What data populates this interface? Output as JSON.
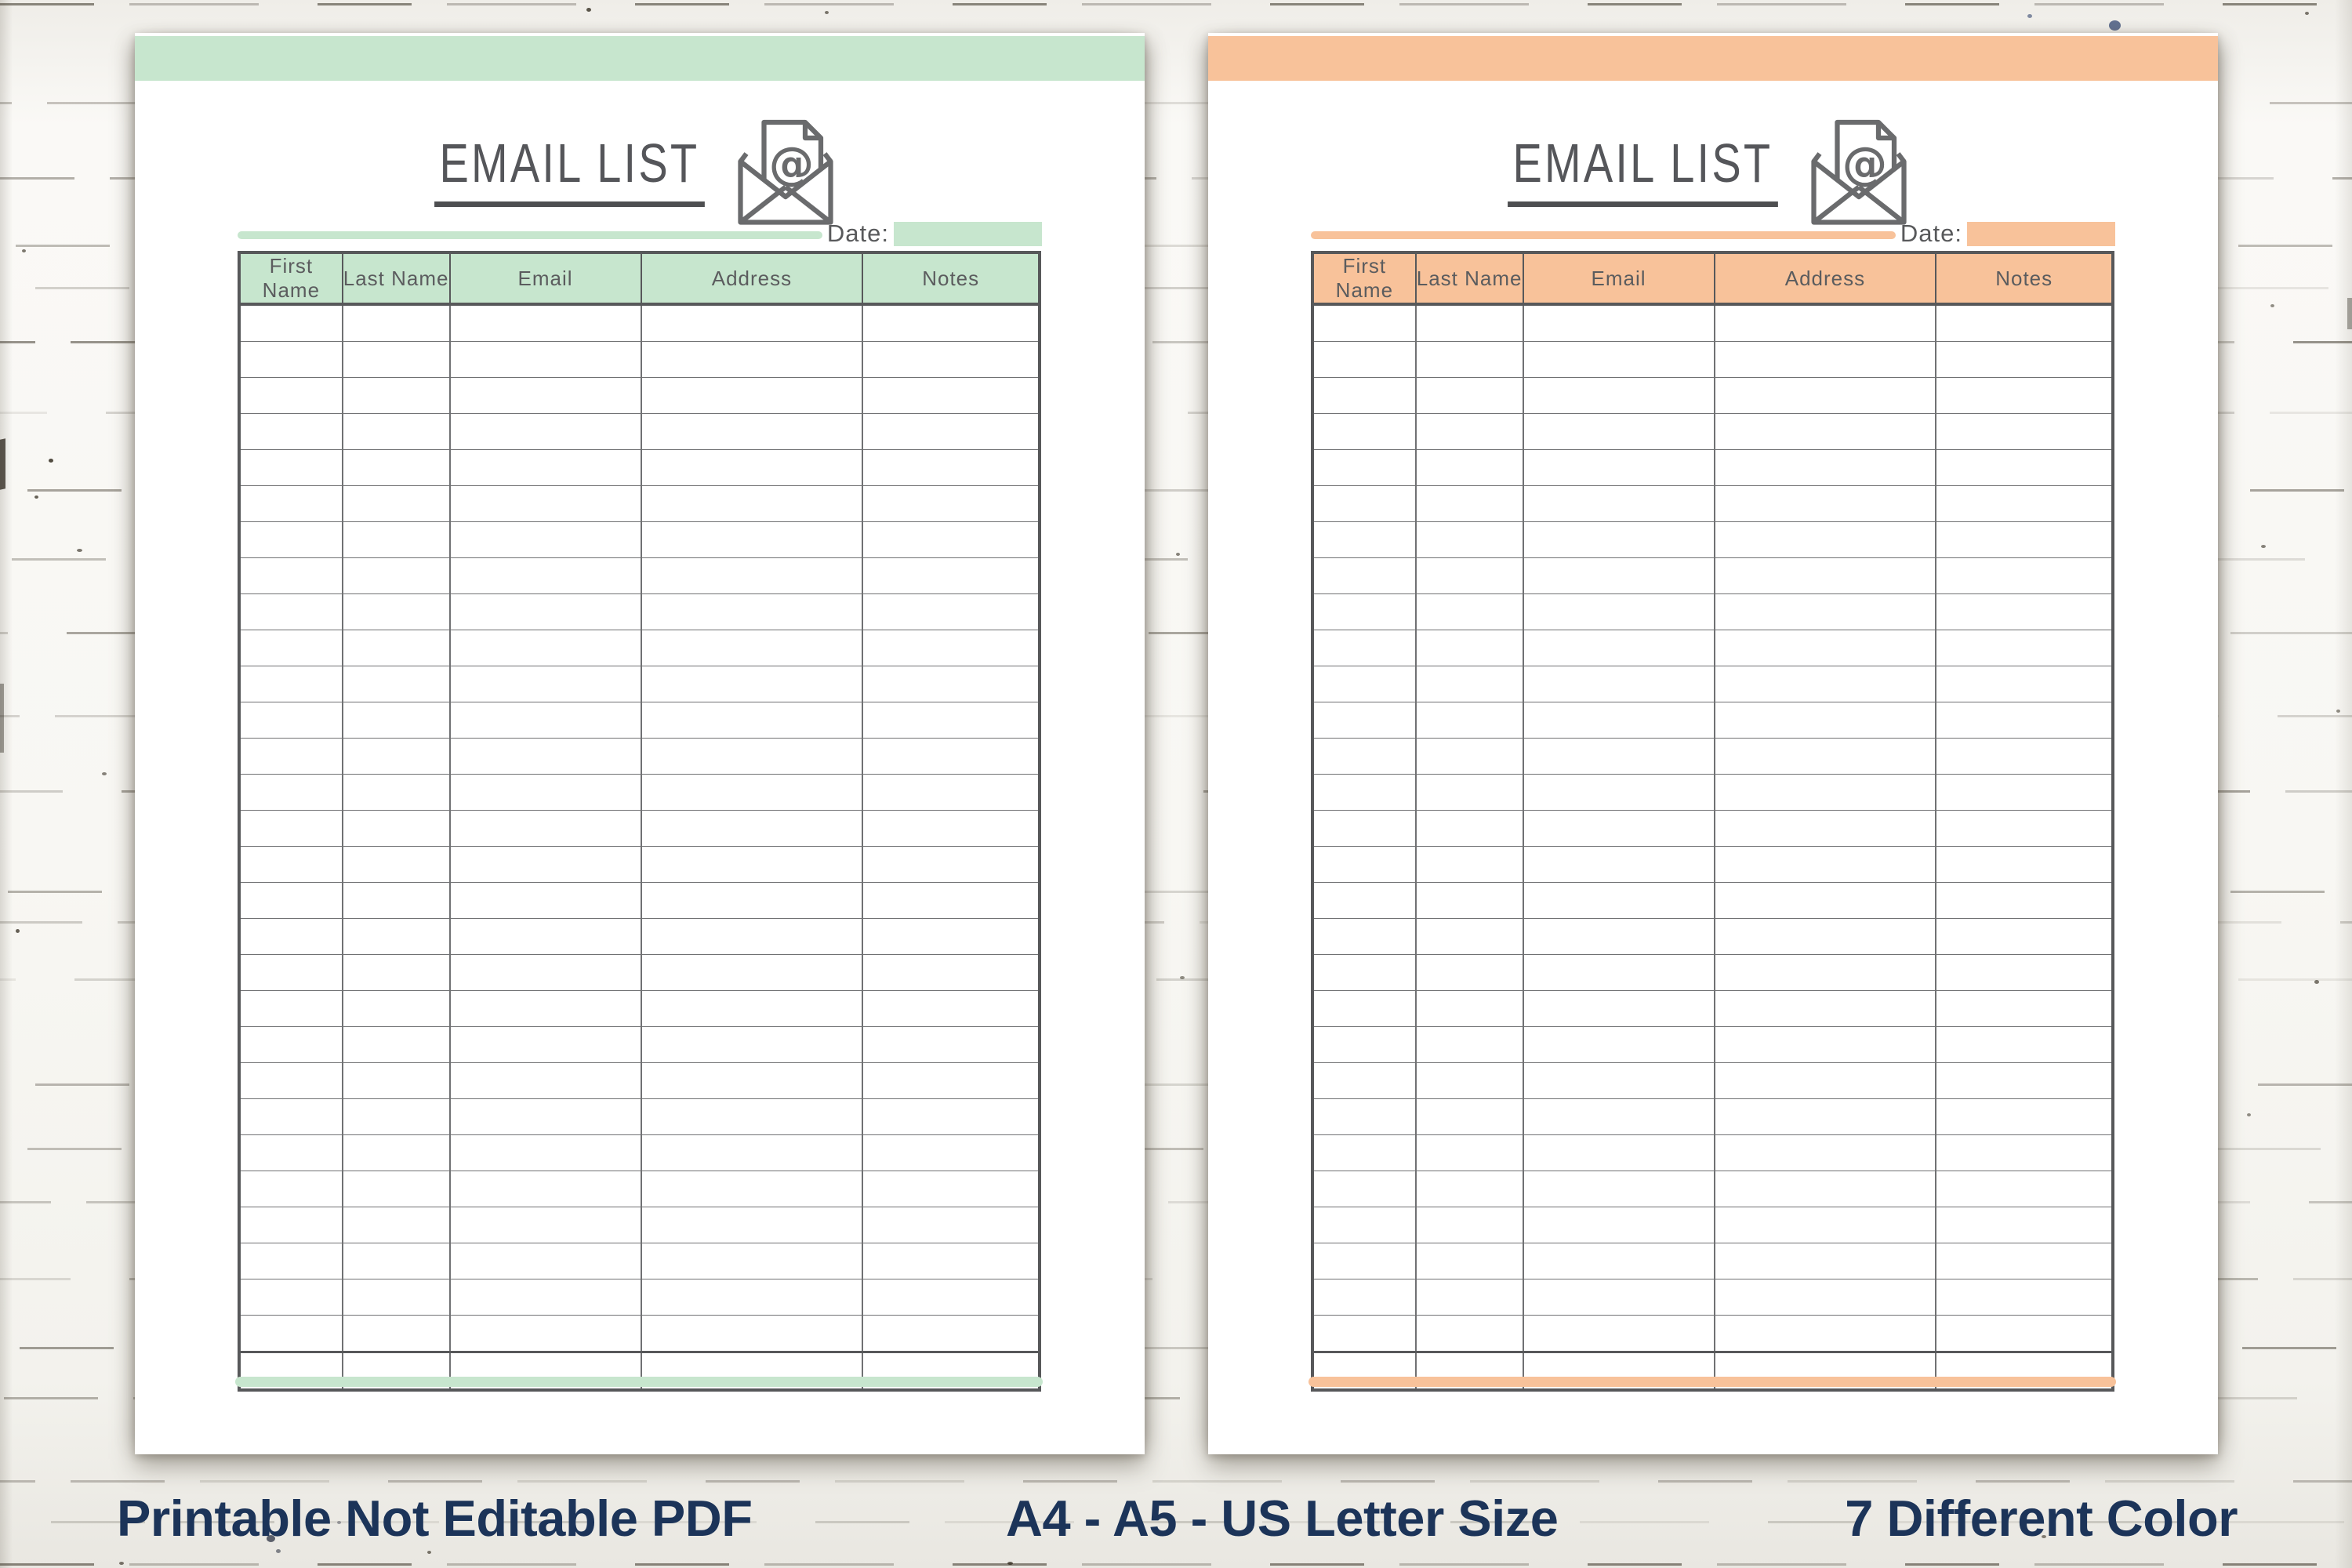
{
  "pages": [
    {
      "variant": "mint",
      "accent_color": "#c7e6ce",
      "title": "EMAIL LIST",
      "date_label": "Date:",
      "date_value": "",
      "columns": [
        "First Name",
        "Last Name",
        "Email",
        "Address",
        "Notes"
      ],
      "empty_row_count": 30
    },
    {
      "variant": "peach",
      "accent_color": "#f8c29a",
      "title": "EMAIL LIST",
      "date_label": "Date:",
      "date_value": "",
      "columns": [
        "First Name",
        "Last Name",
        "Email",
        "Address",
        "Notes"
      ],
      "empty_row_count": 30
    }
  ],
  "footer": {
    "left_label": "Printable Not Editable PDF",
    "center_label": "A4 - A5 - US Letter Size",
    "right_label": "7 Different Color",
    "text_color": "#1c3459"
  }
}
